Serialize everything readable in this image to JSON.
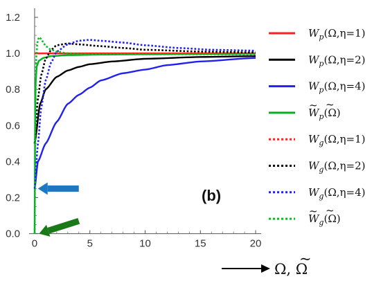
{
  "chart_data": {
    "type": "line",
    "panel_label": "(b)",
    "xlabel_parts": [
      "Ω",
      ", ",
      "Ω",
      "̃"
    ],
    "xlim": [
      -0.5,
      20.5
    ],
    "ylim": [
      -0.04,
      1.25
    ],
    "x_ticks": [
      "0",
      "5",
      "10",
      "15",
      "20"
    ],
    "x_tick_values": [
      0,
      5,
      10,
      15,
      20
    ],
    "y_ticks": [
      "0.0",
      "0.2",
      "0.4",
      "0.6",
      "0.8",
      "1.0",
      "1.2"
    ],
    "y_tick_values": [
      0,
      0.2,
      0.4,
      0.6,
      0.8,
      1.0,
      1.2
    ],
    "grid": false,
    "legend_position": "right",
    "series": [
      {
        "name": "W_p(Ω,η=1)",
        "legend": {
          "W": "W",
          "sub": "p",
          "args": "(Ω,η=1)",
          "tilde": false
        },
        "color": "#ff2020",
        "style": "solid",
        "x": [
          0,
          0.02,
          20
        ],
        "y": [
          1.0,
          1.0,
          1.0
        ]
      },
      {
        "name": "W_p(Ω,η=2)",
        "legend": {
          "W": "W",
          "sub": "p",
          "args": "(Ω,η=2)",
          "tilde": false
        },
        "color": "#000000",
        "style": "solid",
        "x": [
          0,
          0.5,
          1,
          2,
          3,
          4,
          5,
          7,
          10,
          15,
          20
        ],
        "y": [
          0.5,
          0.72,
          0.8,
          0.87,
          0.905,
          0.925,
          0.94,
          0.955,
          0.97,
          0.98,
          0.985
        ]
      },
      {
        "name": "W_p(Ω,η=4)",
        "legend": {
          "W": "W",
          "sub": "p",
          "args": "(Ω,η=4)",
          "tilde": false
        },
        "color": "#2020f0",
        "style": "solid",
        "x": [
          0,
          0.3,
          1,
          2,
          3,
          4,
          5,
          6,
          8,
          10,
          12,
          15,
          20
        ],
        "y": [
          0.25,
          0.4,
          0.5,
          0.62,
          0.72,
          0.77,
          0.81,
          0.85,
          0.89,
          0.91,
          0.935,
          0.955,
          0.975
        ]
      },
      {
        "name": "W̃_p(Ω̃)",
        "legend": {
          "W": "W",
          "sub": "p",
          "args": "(Ω)",
          "tilde": true
        },
        "color": "#00b020",
        "style": "solid",
        "x": [
          0,
          0.05,
          0.1,
          0.2,
          0.4,
          0.8,
          1.5,
          3,
          6,
          10,
          20
        ],
        "y": [
          0.0,
          0.7,
          0.85,
          0.93,
          0.96,
          0.975,
          0.985,
          0.99,
          0.993,
          0.995,
          0.998
        ]
      },
      {
        "name": "W_g(Ω,η=1)",
        "legend": {
          "W": "W",
          "sub": "g",
          "args": "(Ω,η=1)",
          "tilde": false
        },
        "color": "#ff2020",
        "style": "dotted",
        "x": [
          0,
          0.05,
          20
        ],
        "y": [
          1.0,
          1.0,
          1.0
        ]
      },
      {
        "name": "W_g(Ω,η=2)",
        "legend": {
          "W": "W",
          "sub": "g",
          "args": "(Ω,η=2)",
          "tilde": false
        },
        "color": "#000000",
        "style": "dotted",
        "x": [
          0,
          0.3,
          0.6,
          1,
          1.5,
          2,
          3,
          4,
          6,
          8,
          10,
          15,
          20
        ],
        "y": [
          0.5,
          0.75,
          0.88,
          0.97,
          1.02,
          1.045,
          1.055,
          1.05,
          1.04,
          1.03,
          1.02,
          1.01,
          1.005
        ]
      },
      {
        "name": "W_g(Ω,η=4)",
        "legend": {
          "W": "W",
          "sub": "g",
          "args": "(Ω,η=4)",
          "tilde": false
        },
        "color": "#2020f0",
        "style": "dotted",
        "x": [
          0,
          0.3,
          0.6,
          1,
          1.5,
          2,
          3,
          4,
          5,
          6,
          8,
          10,
          13,
          16,
          20
        ],
        "y": [
          0.25,
          0.5,
          0.7,
          0.85,
          0.95,
          1.01,
          1.05,
          1.07,
          1.075,
          1.07,
          1.06,
          1.045,
          1.03,
          1.02,
          1.015
        ]
      },
      {
        "name": "W̃_g(Ω̃)",
        "legend": {
          "W": "W",
          "sub": "g",
          "args": "(Ω)",
          "tilde": true
        },
        "color": "#00c020",
        "style": "dotted",
        "x": [
          0,
          0.05,
          0.1,
          0.15,
          0.25,
          0.4,
          0.6,
          0.8,
          1,
          1.5,
          2,
          3,
          5,
          10,
          20
        ],
        "y": [
          0.0,
          0.5,
          0.85,
          0.98,
          1.06,
          1.09,
          1.08,
          1.06,
          1.04,
          1.02,
          1.01,
          1.0,
          0.995,
          0.995,
          0.995
        ]
      }
    ],
    "annotations": [
      {
        "type": "arrow",
        "color": "#1f77c4",
        "from": [
          4.0,
          0.25
        ],
        "to": [
          0.3,
          0.25
        ]
      },
      {
        "type": "arrow",
        "color": "#1a7a1a",
        "from": [
          4.0,
          0.07
        ],
        "to": [
          0.4,
          0.0
        ]
      }
    ]
  }
}
